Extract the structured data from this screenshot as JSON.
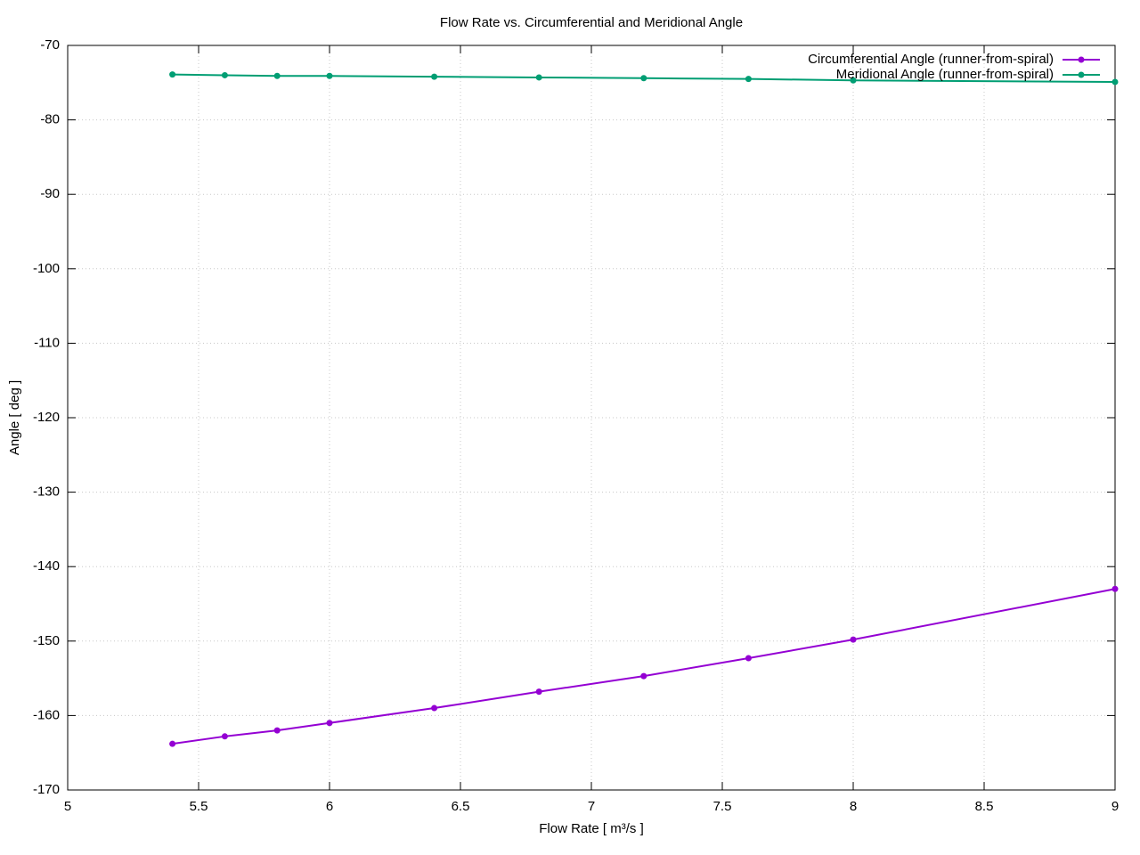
{
  "chart_data": {
    "type": "line",
    "title": "Flow Rate vs. Circumferential and Meridional Angle",
    "x_label": "Flow Rate [ m³/s ]",
    "y_label": "Angle [ deg ]",
    "x": [
      5.4,
      5.6,
      5.8,
      6.0,
      6.4,
      6.8,
      7.2,
      7.6,
      8.0,
      9.0
    ],
    "series": [
      {
        "name": "Circumferential Angle (runner-from-spiral)",
        "color": "#9400d3",
        "values": [
          -163.8,
          -162.8,
          -162.0,
          -161.0,
          -159.0,
          -156.8,
          -154.7,
          -152.3,
          -149.8,
          -143.0
        ]
      },
      {
        "name": "Meridional Angle (runner-from-spiral)",
        "color": "#009e73",
        "values": [
          -73.9,
          -74.0,
          -74.1,
          -74.1,
          -74.2,
          -74.3,
          -74.4,
          -74.5,
          -74.7,
          -74.9
        ]
      }
    ],
    "xlim": [
      5,
      9
    ],
    "xticks": [
      5,
      5.5,
      6,
      6.5,
      7,
      7.5,
      8,
      8.5,
      9
    ],
    "ylim": [
      -170,
      -70
    ],
    "yticks": [
      -170,
      -160,
      -150,
      -140,
      -130,
      -120,
      -110,
      -100,
      -90,
      -80,
      -70
    ],
    "grid": true,
    "legend": "top-right"
  }
}
